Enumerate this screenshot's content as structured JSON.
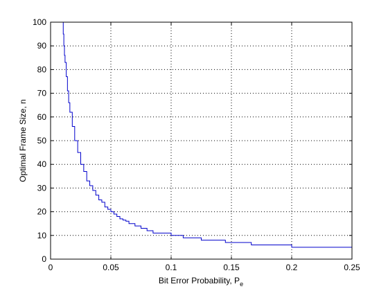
{
  "chart_data": {
    "type": "line",
    "xlabel": "Bit Error Probability, P",
    "xlabel_subscript": "e",
    "ylabel": "Optimal Frame Size, n",
    "xlim": [
      0,
      0.25
    ],
    "ylim": [
      0,
      100
    ],
    "grid": true,
    "grid_style": "dotted",
    "x_ticks": [
      0,
      0.05,
      0.1,
      0.15,
      0.2,
      0.25
    ],
    "x_tick_labels": [
      "0",
      "0.05",
      "0.1",
      "0.15",
      "0.2",
      "0.25"
    ],
    "y_ticks": [
      0,
      10,
      20,
      30,
      40,
      50,
      60,
      70,
      80,
      90,
      100
    ],
    "y_tick_labels": [
      "0",
      "10",
      "20",
      "30",
      "40",
      "50",
      "60",
      "70",
      "80",
      "90",
      "100"
    ],
    "series": [
      {
        "color": "#0000cc",
        "description_curve": "staircase",
        "x": [
          0.01,
          0.0105,
          0.011,
          0.0115,
          0.012,
          0.013,
          0.014,
          0.015,
          0.016,
          0.018,
          0.02,
          0.0225,
          0.025,
          0.0275,
          0.03,
          0.0325,
          0.035,
          0.0375,
          0.04,
          0.0425,
          0.045,
          0.0475,
          0.05,
          0.0525,
          0.055,
          0.0575,
          0.06,
          0.0625,
          0.065,
          0.07,
          0.075,
          0.08,
          0.085,
          0.09,
          0.1,
          0.11,
          0.125,
          0.145,
          0.1665,
          0.2,
          0.25
        ],
        "y": [
          100,
          95,
          90,
          86,
          83,
          77,
          71,
          66,
          62,
          56,
          50,
          45,
          40,
          37,
          33,
          31,
          29,
          27,
          25,
          24,
          22,
          21,
          20,
          19,
          18,
          17,
          16.5,
          16,
          15,
          14,
          13,
          12,
          11,
          11,
          10,
          9,
          8,
          7,
          6,
          5,
          4
        ]
      }
    ]
  }
}
